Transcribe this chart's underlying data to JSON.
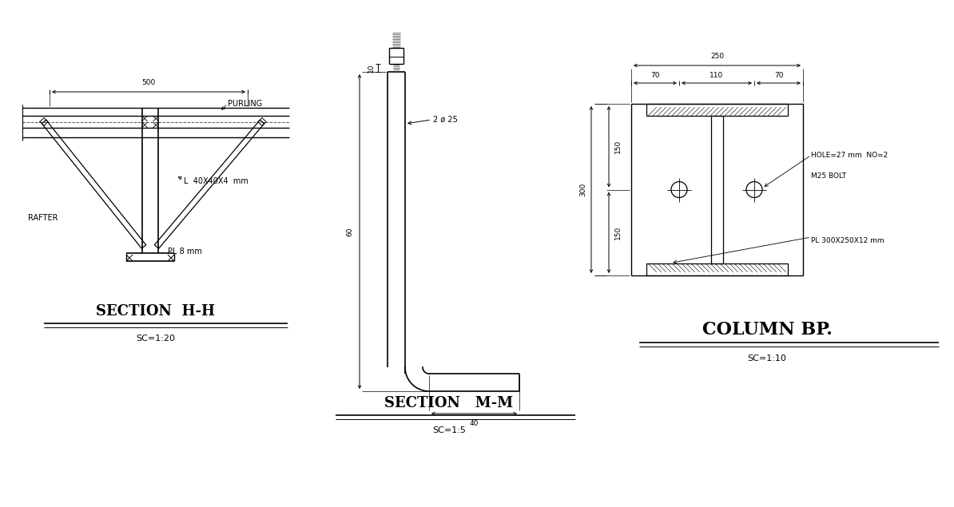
{
  "bg_color": "#ffffff",
  "line_color": "#000000",
  "title_fontsize": 13,
  "label_fontsize": 7,
  "dim_fontsize": 6.5,
  "section_hh": {
    "title": "SECTION  H-H",
    "scale": "SC=1:20",
    "purlin_label": "PURLING",
    "rafter_label": "RAFTER",
    "l_label": "L  40X40X4  mm",
    "pl_label": "PL 8 mm",
    "dim_500": "500"
  },
  "section_mm": {
    "title": "SECTION   M-M",
    "scale": "SC=1:5",
    "dim_label": "2 ø 25",
    "dim_60": "60",
    "dim_40": "40",
    "dim_10": "10"
  },
  "column_bp": {
    "title": "COLUMN BP.",
    "scale": "SC=1:10",
    "dim_250": "250",
    "dim_70a": "70",
    "dim_110": "110",
    "dim_70b": "70",
    "dim_300": "300",
    "dim_150a": "150",
    "dim_150b": "150",
    "hole_label": "HOLE=27 mm  NO=2",
    "bolt_label": "M25 BOLT",
    "pl_label": "PL 300X250X12 mm"
  }
}
